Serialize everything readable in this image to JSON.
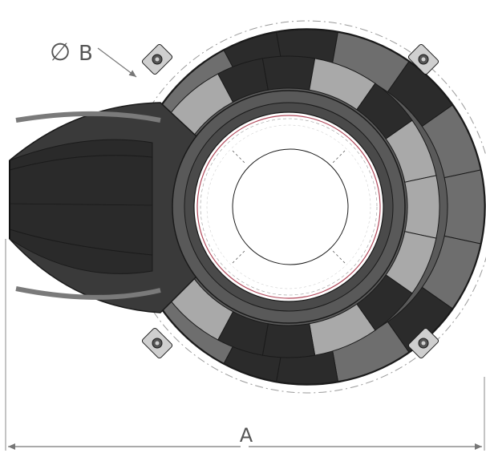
{
  "drawing": {
    "dimension_a_label": "A",
    "dimension_b_label": "B",
    "diameter_symbol": "∅"
  },
  "colors": {
    "dark_segment": "#2b2b2b",
    "mid_segment": "#6e6e6e",
    "light_segment": "#a9a9a9",
    "outline": "#1a1a1a",
    "dimension_line": "#888888",
    "bolt_lug": "#cfcfcf",
    "bore_accent": "#b0485a"
  },
  "icons": {
    "bolt_lug": "mounting-lug-icon",
    "dimension_arrow": "arrow-icon"
  }
}
